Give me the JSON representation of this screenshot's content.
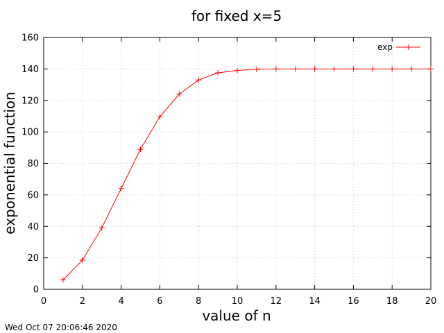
{
  "chart_data": {
    "type": "line",
    "title": "for fixed x=5",
    "xlabel": "value of n",
    "ylabel": "exponential function",
    "xlim": [
      0,
      20
    ],
    "ylim": [
      0,
      160
    ],
    "xticks": [
      0,
      2,
      4,
      6,
      8,
      10,
      12,
      14,
      16,
      18,
      20
    ],
    "yticks": [
      0,
      20,
      40,
      60,
      80,
      100,
      120,
      140,
      160
    ],
    "grid": true,
    "legend_position": "top-right",
    "series": [
      {
        "name": "exp",
        "color": "#ff0000",
        "marker": "plus",
        "x": [
          1,
          2,
          3,
          4,
          5,
          6,
          7,
          8,
          9,
          10,
          11,
          12,
          13,
          14,
          15,
          16,
          17,
          18,
          19,
          20
        ],
        "y": [
          6,
          18.5,
          39,
          64,
          89,
          109.6,
          124,
          133,
          137.5,
          139,
          139.8,
          140,
          140,
          140,
          140,
          140,
          140,
          140,
          140,
          140
        ]
      }
    ]
  },
  "footer": {
    "timestamp": "Wed Oct 07 20:06:46 2020"
  }
}
